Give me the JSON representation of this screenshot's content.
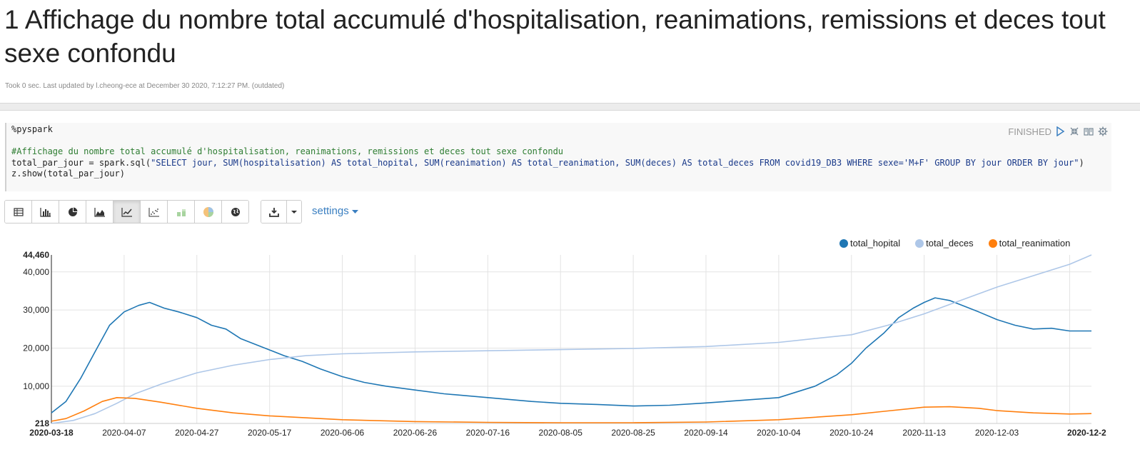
{
  "paragraph": {
    "title": "1 Affichage du nombre total accumulé d'hospitalisation, reanimations, remissions et deces tout sexe confondu",
    "meta": "Took 0 sec. Last updated by l.cheong-ece at December 30 2020, 7:12:27 PM. (outdated)",
    "status": "FINISHED",
    "icons": [
      "run-icon",
      "expand-collapse-icon",
      "book-icon",
      "gear-icon"
    ]
  },
  "code": {
    "interpreter": "%pyspark",
    "comment": "#Affichage du nombre total accumulé d'hospitalisation, reanimations, remissions et deces tout sexe confondu",
    "line3_pre": "total_par_jour = spark.sql(",
    "line3_str": "\"SELECT jour, SUM(hospitalisation) AS total_hopital, SUM(reanimation) AS total_reanimation, SUM(deces) AS total_deces FROM covid19_DB3 WHERE sexe='M+F' GROUP BY jour ORDER BY jour\"",
    "line3_post": ")",
    "line4": "z.show(total_par_jour)"
  },
  "toolbar": {
    "buttons": [
      "table-icon",
      "bar-chart-icon",
      "pie-chart-icon",
      "area-chart-icon",
      "line-chart-icon",
      "scatter-chart-icon",
      "stacked-chart-icon",
      "pie-alt-icon",
      "globe-icon"
    ],
    "active": "line-chart-icon",
    "download_icon": "download-icon",
    "settings_label": "settings"
  },
  "chart_data": {
    "type": "line",
    "legend_position": "top-right",
    "grid": true,
    "x_tick_labels": [
      "2020-03-18",
      "2020-04-07",
      "2020-04-27",
      "2020-05-17",
      "2020-06-06",
      "2020-06-26",
      "2020-07-16",
      "2020-08-05",
      "2020-08-25",
      "2020-09-14",
      "2020-10-04",
      "2020-10-24",
      "2020-11-13",
      "2020-12-03",
      "2020-12-2"
    ],
    "y_tick_labels": [
      "218",
      "10,000",
      "20,000",
      "30,000",
      "40,000",
      "44,460"
    ],
    "ylim": [
      218,
      44460
    ],
    "xlim": [
      "2020-03-18",
      "2020-12-29"
    ],
    "series": [
      {
        "name": "total_hopital",
        "color": "#1f77b4",
        "points": [
          [
            "2020-03-18",
            2972
          ],
          [
            "2020-03-22",
            6000
          ],
          [
            "2020-03-26",
            12000
          ],
          [
            "2020-03-30",
            19000
          ],
          [
            "2020-04-03",
            26000
          ],
          [
            "2020-04-07",
            29500
          ],
          [
            "2020-04-11",
            31200
          ],
          [
            "2020-04-14",
            32000
          ],
          [
            "2020-04-18",
            30500
          ],
          [
            "2020-04-22",
            29500
          ],
          [
            "2020-04-27",
            28000
          ],
          [
            "2020-05-01",
            26000
          ],
          [
            "2020-05-05",
            25000
          ],
          [
            "2020-05-09",
            22500
          ],
          [
            "2020-05-13",
            21000
          ],
          [
            "2020-05-17",
            19500
          ],
          [
            "2020-05-21",
            18000
          ],
          [
            "2020-05-26",
            16500
          ],
          [
            "2020-05-31",
            14500
          ],
          [
            "2020-06-06",
            12500
          ],
          [
            "2020-06-12",
            11000
          ],
          [
            "2020-06-18",
            10000
          ],
          [
            "2020-06-26",
            9000
          ],
          [
            "2020-07-04",
            8000
          ],
          [
            "2020-07-16",
            7000
          ],
          [
            "2020-07-28",
            6000
          ],
          [
            "2020-08-05",
            5500
          ],
          [
            "2020-08-15",
            5200
          ],
          [
            "2020-08-25",
            4800
          ],
          [
            "2020-09-04",
            5000
          ],
          [
            "2020-09-14",
            5600
          ],
          [
            "2020-09-24",
            6300
          ],
          [
            "2020-10-04",
            7000
          ],
          [
            "2020-10-14",
            10000
          ],
          [
            "2020-10-20",
            13000
          ],
          [
            "2020-10-24",
            16000
          ],
          [
            "2020-10-28",
            20000
          ],
          [
            "2020-11-02",
            24000
          ],
          [
            "2020-11-06",
            28000
          ],
          [
            "2020-11-10",
            30500
          ],
          [
            "2020-11-13",
            32000
          ],
          [
            "2020-11-16",
            33200
          ],
          [
            "2020-11-20",
            32500
          ],
          [
            "2020-11-24",
            31000
          ],
          [
            "2020-11-28",
            29500
          ],
          [
            "2020-12-03",
            27500
          ],
          [
            "2020-12-08",
            26000
          ],
          [
            "2020-12-13",
            25000
          ],
          [
            "2020-12-18",
            25200
          ],
          [
            "2020-12-23",
            24500
          ],
          [
            "2020-12-29",
            24500
          ]
        ]
      },
      {
        "name": "total_deces",
        "color": "#aec7e8",
        "points": [
          [
            "2020-03-18",
            218
          ],
          [
            "2020-03-24",
            1000
          ],
          [
            "2020-03-30",
            2800
          ],
          [
            "2020-04-05",
            5500
          ],
          [
            "2020-04-10",
            8000
          ],
          [
            "2020-04-17",
            10500
          ],
          [
            "2020-04-27",
            13500
          ],
          [
            "2020-05-07",
            15500
          ],
          [
            "2020-05-17",
            17000
          ],
          [
            "2020-05-27",
            18000
          ],
          [
            "2020-06-06",
            18500
          ],
          [
            "2020-06-26",
            19000
          ],
          [
            "2020-07-16",
            19300
          ],
          [
            "2020-08-05",
            19600
          ],
          [
            "2020-08-25",
            19900
          ],
          [
            "2020-09-14",
            20400
          ],
          [
            "2020-10-04",
            21500
          ],
          [
            "2020-10-14",
            22500
          ],
          [
            "2020-10-24",
            23500
          ],
          [
            "2020-11-03",
            26000
          ],
          [
            "2020-11-13",
            29000
          ],
          [
            "2020-11-23",
            32500
          ],
          [
            "2020-12-03",
            36000
          ],
          [
            "2020-12-13",
            39000
          ],
          [
            "2020-12-23",
            42000
          ],
          [
            "2020-12-29",
            44460
          ]
        ]
      },
      {
        "name": "total_reanimation",
        "color": "#ff7f0e",
        "points": [
          [
            "2020-03-18",
            800
          ],
          [
            "2020-03-22",
            1500
          ],
          [
            "2020-03-27",
            3500
          ],
          [
            "2020-04-01",
            6000
          ],
          [
            "2020-04-05",
            7000
          ],
          [
            "2020-04-10",
            6800
          ],
          [
            "2020-04-17",
            5800
          ],
          [
            "2020-04-27",
            4200
          ],
          [
            "2020-05-07",
            3000
          ],
          [
            "2020-05-17",
            2200
          ],
          [
            "2020-06-06",
            1200
          ],
          [
            "2020-06-26",
            700
          ],
          [
            "2020-07-16",
            500
          ],
          [
            "2020-08-05",
            400
          ],
          [
            "2020-08-25",
            400
          ],
          [
            "2020-09-14",
            600
          ],
          [
            "2020-10-04",
            1200
          ],
          [
            "2020-10-24",
            2500
          ],
          [
            "2020-11-03",
            3500
          ],
          [
            "2020-11-13",
            4500
          ],
          [
            "2020-11-20",
            4600
          ],
          [
            "2020-11-28",
            4200
          ],
          [
            "2020-12-03",
            3600
          ],
          [
            "2020-12-13",
            3000
          ],
          [
            "2020-12-23",
            2700
          ],
          [
            "2020-12-29",
            2800
          ]
        ]
      }
    ]
  }
}
